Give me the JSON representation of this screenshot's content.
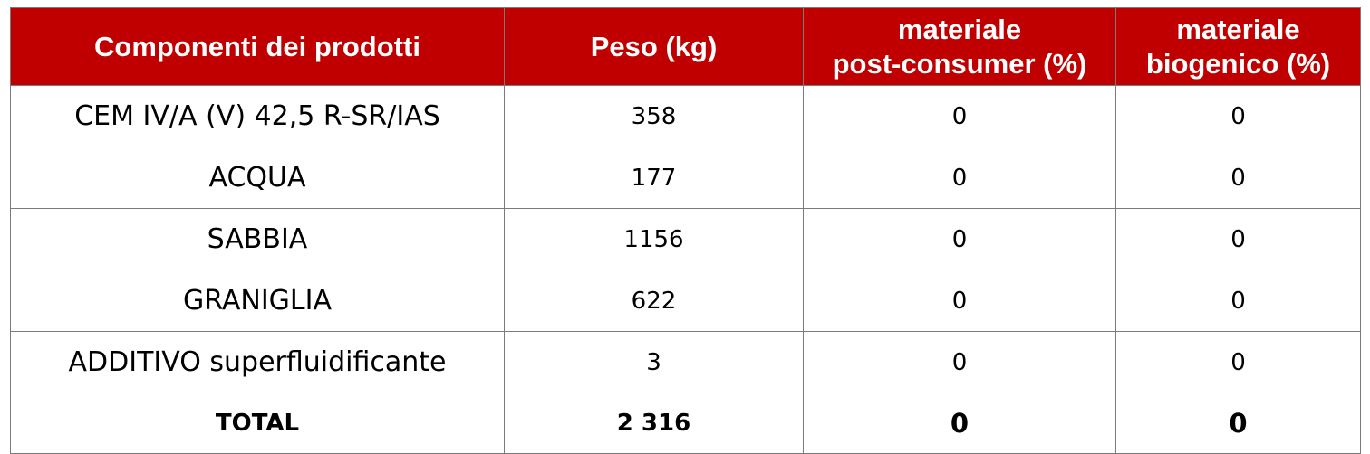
{
  "table": {
    "headers": [
      {
        "lines": [
          "Componenti dei prodotti"
        ]
      },
      {
        "lines": [
          "Peso (kg)"
        ]
      },
      {
        "lines": [
          "materiale",
          "post-consumer (%)"
        ]
      },
      {
        "lines": [
          "materiale",
          "biogenico (%)"
        ]
      }
    ],
    "rows": [
      [
        "CEM IV/A (V) 42,5 R-SR/IAS",
        "358",
        "0",
        "0"
      ],
      [
        "ACQUA",
        "177",
        "0",
        "0"
      ],
      [
        "SABBIA",
        "1156",
        "0",
        "0"
      ],
      [
        "GRANIGLIA",
        "622",
        "0",
        "0"
      ],
      [
        "ADDITIVO superfluidificante",
        "3",
        "0",
        "0"
      ]
    ],
    "total": [
      "TOTAL",
      "2 316",
      "0",
      "0"
    ],
    "colors": {
      "header_bg": "#c00000",
      "header_text": "#ffffff",
      "border": "#7a7a7a"
    }
  }
}
